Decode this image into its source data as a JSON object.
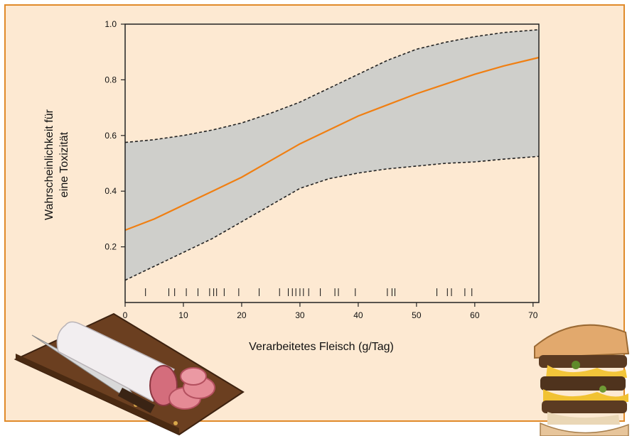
{
  "chart_data": {
    "type": "line",
    "title": "",
    "xlabel": "Verarbeitetes Fleisch (g/Tag)",
    "ylabel_lines": [
      "Wahrscheinlichkeit für",
      "eine Toxizität"
    ],
    "xlim": [
      0,
      71
    ],
    "ylim": [
      0.0,
      1.0
    ],
    "x_ticks": [
      0,
      10,
      20,
      30,
      40,
      50,
      60,
      70
    ],
    "y_ticks": [
      0.2,
      0.4,
      0.6,
      0.8,
      1.0
    ],
    "y_tick_labels": [
      "0.2",
      "0.4",
      "0.6",
      "0.8",
      "1.0"
    ],
    "x": [
      0,
      5,
      10,
      15,
      20,
      25,
      30,
      35,
      40,
      45,
      50,
      55,
      60,
      65,
      71
    ],
    "series": [
      {
        "role": "estimate",
        "color": "#f07f12",
        "values": [
          0.26,
          0.3,
          0.35,
          0.4,
          0.45,
          0.51,
          0.57,
          0.62,
          0.67,
          0.71,
          0.75,
          0.785,
          0.82,
          0.85,
          0.88
        ]
      },
      {
        "role": "upper-bound",
        "color": "#222222",
        "values": [
          0.575,
          0.585,
          0.6,
          0.62,
          0.645,
          0.68,
          0.72,
          0.77,
          0.82,
          0.87,
          0.91,
          0.935,
          0.955,
          0.97,
          0.98
        ]
      },
      {
        "role": "lower-bound",
        "color": "#222222",
        "values": [
          0.08,
          0.13,
          0.18,
          0.23,
          0.29,
          0.35,
          0.41,
          0.445,
          0.465,
          0.48,
          0.49,
          0.5,
          0.505,
          0.515,
          0.525
        ]
      }
    ],
    "band_color": "#cfcfcb",
    "rug_x": [
      3.5,
      7.5,
      8.5,
      10.5,
      12.5,
      14.5,
      15.2,
      15.7,
      17,
      19.5,
      23,
      26.5,
      28,
      28.7,
      29.3,
      30,
      30.6,
      31.5,
      33.5,
      36,
      36.6,
      39.5,
      45,
      45.8,
      46.3,
      53.5,
      55.3,
      56,
      58.3,
      59.5
    ],
    "grid": false,
    "legend": "none"
  },
  "illustrations": {
    "salami": "salami-on-cutting-board",
    "burger": "stacked-burger"
  }
}
